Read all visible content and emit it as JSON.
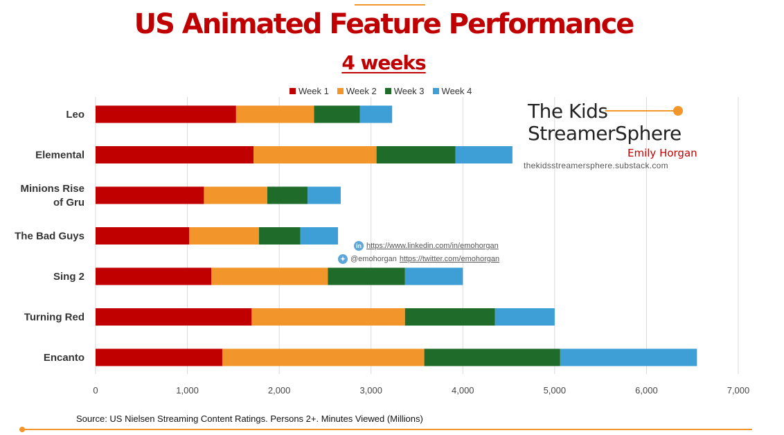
{
  "header": {
    "title": "US Animated Feature Performance",
    "subtitle": "4 weeks"
  },
  "branding": {
    "line1": "The Kids",
    "line2": "StreamerSphere",
    "author": "Emily Horgan",
    "url": "thekidsstreamersphere.substack.com"
  },
  "social": {
    "linkedin_url": "https://www.linkedin.com/in/emohorgan",
    "twitter_handle": "@emohorgan",
    "twitter_url": "https://twitter.com/emohorgan"
  },
  "footer": {
    "source": "Source:  US Nielsen Streaming Content Ratings.  Persons 2+.  Minutes Viewed (Millions)"
  },
  "colors": {
    "accent": "#f2962b",
    "title": "#c00000"
  },
  "chart_data": {
    "type": "bar",
    "orientation": "horizontal",
    "stacked": true,
    "categories": [
      "Leo",
      "Elemental",
      "Minions Rise of Gru",
      "The Bad Guys",
      "Sing 2",
      "Turning Red",
      "Encanto"
    ],
    "series": [
      {
        "name": "Week 1",
        "color": "#c00000",
        "values": [
          1530,
          1720,
          1180,
          1020,
          1260,
          1700,
          1380
        ]
      },
      {
        "name": "Week 2",
        "color": "#f2962b",
        "values": [
          850,
          1340,
          690,
          760,
          1270,
          1670,
          2200
        ]
      },
      {
        "name": "Week 3",
        "color": "#1e6b2a",
        "values": [
          500,
          860,
          440,
          450,
          840,
          980,
          1480
        ]
      },
      {
        "name": "Week 4",
        "color": "#3d9fd6",
        "values": [
          350,
          620,
          360,
          410,
          630,
          650,
          1490
        ]
      }
    ],
    "xlim": [
      0,
      7000
    ],
    "xticks": [
      0,
      1000,
      2000,
      3000,
      4000,
      5000,
      6000,
      7000
    ],
    "xtick_labels": [
      "0",
      "1,000",
      "2,000",
      "3,000",
      "4,000",
      "5,000",
      "6,000",
      "7,000"
    ],
    "grid": "vertical",
    "legend": "top"
  }
}
